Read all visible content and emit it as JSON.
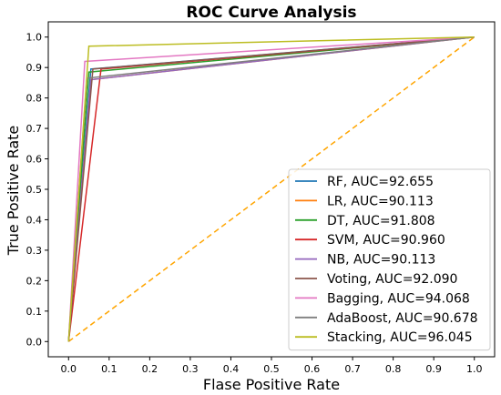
{
  "chart_data": {
    "type": "line",
    "title": "ROC Curve Analysis",
    "xlabel": "Flase Positive Rate",
    "ylabel": "True Positive Rate",
    "xlim": [
      -0.05,
      1.05
    ],
    "ylim": [
      -0.05,
      1.05
    ],
    "x_ticks": [
      "0.0",
      "0.1",
      "0.2",
      "0.3",
      "0.4",
      "0.5",
      "0.6",
      "0.7",
      "0.8",
      "0.9",
      "1.0"
    ],
    "y_ticks": [
      "0.0",
      "0.1",
      "0.2",
      "0.3",
      "0.4",
      "0.5",
      "0.6",
      "0.7",
      "0.8",
      "0.9",
      "1.0"
    ],
    "grid": false,
    "legend_position": "lower-right",
    "diagonal": {
      "x": [
        0,
        1
      ],
      "y": [
        0,
        1
      ],
      "color": "#ffa500",
      "style": "dashed"
    },
    "series": [
      {
        "name": "RF, AUC=92.655",
        "color": "#1f77b4",
        "x": [
          0,
          0.055,
          1
        ],
        "y": [
          0,
          0.895,
          1
        ]
      },
      {
        "name": "LR, AUC=90.113",
        "color": "#ff7f0e",
        "x": [
          0,
          0.055,
          1
        ],
        "y": [
          0,
          0.86,
          1
        ]
      },
      {
        "name": "DT, AUC=91.808",
        "color": "#2ca02c",
        "x": [
          0,
          0.05,
          1
        ],
        "y": [
          0,
          0.885,
          1
        ]
      },
      {
        "name": "SVM, AUC=90.960",
        "color": "#d62728",
        "x": [
          0,
          0.08,
          1
        ],
        "y": [
          0,
          0.895,
          1
        ]
      },
      {
        "name": "NB, AUC=90.113",
        "color": "#9467bd",
        "x": [
          0,
          0.055,
          1
        ],
        "y": [
          0,
          0.86,
          1
        ]
      },
      {
        "name": "Voting, AUC=92.090",
        "color": "#8c564b",
        "x": [
          0,
          0.06,
          1
        ],
        "y": [
          0,
          0.895,
          1
        ]
      },
      {
        "name": "Bagging, AUC=94.068",
        "color": "#e377c2",
        "x": [
          0,
          0.04,
          1
        ],
        "y": [
          0,
          0.92,
          1
        ]
      },
      {
        "name": "AdaBoost, AUC=90.678",
        "color": "#7f7f7f",
        "x": [
          0,
          0.045,
          1
        ],
        "y": [
          0,
          0.865,
          1
        ]
      },
      {
        "name": "Stacking, AUC=96.045",
        "color": "#bcbd22",
        "x": [
          0,
          0.05,
          1
        ],
        "y": [
          0,
          0.97,
          1
        ]
      }
    ]
  }
}
